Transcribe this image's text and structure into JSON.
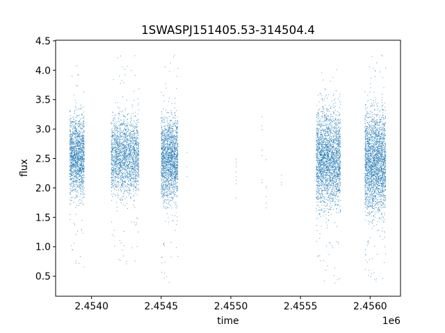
{
  "chart_data": {
    "type": "scatter",
    "title": "1SWASPJ151405.53-314504.4",
    "xlabel": "time",
    "ylabel": "flux",
    "x_offset_label": "1e6",
    "xlim": [
      2453742,
      2456218
    ],
    "ylim": [
      0.16,
      4.51
    ],
    "xticks": [
      2453999.9,
      2454500,
      2455000,
      2455500,
      2456000
    ],
    "xtick_labels": [
      "2.4540",
      "2.4545",
      "2.4550",
      "2.4555",
      "2.4560"
    ],
    "yticks": [
      0.5,
      1.0,
      1.5,
      2.0,
      2.5,
      3.0,
      3.5,
      4.0,
      4.5
    ],
    "ytick_labels": [
      "0.5",
      "1.0",
      "1.5",
      "2.0",
      "2.5",
      "3.0",
      "3.5",
      "4.0",
      "4.5"
    ],
    "grid": false,
    "legend": "none",
    "marker_color": "#1f77b4",
    "observing_seasons": [
      {
        "time_range": [
          2453843,
          2453948
        ],
        "flux_core": [
          1.9,
          3.2
        ],
        "flux_extent": [
          0.55,
          4.2
        ],
        "approx_points": 1500
      },
      {
        "time_range": [
          2454141,
          2454341
        ],
        "flux_core": [
          1.9,
          3.2
        ],
        "flux_extent": [
          0.7,
          4.3
        ],
        "approx_points": 2000
      },
      {
        "time_range": [
          2454500,
          2454620
        ],
        "flux_core": [
          1.8,
          3.2
        ],
        "flux_extent": [
          0.35,
          4.3
        ],
        "approx_points": 1800
      },
      {
        "time_range": [
          2455613,
          2455788
        ],
        "flux_core": [
          1.7,
          3.3
        ],
        "flux_extent": [
          0.35,
          4.05
        ],
        "approx_points": 2500
      },
      {
        "time_range": [
          2455962,
          2456112
        ],
        "flux_core": [
          1.6,
          3.3
        ],
        "flux_extent": [
          0.4,
          4.3
        ],
        "approx_points": 2500
      }
    ],
    "isolated_points": [
      [
        2454685,
        2.6
      ],
      [
        2454685,
        2.36
      ],
      [
        2454685,
        2.19
      ],
      [
        2455039,
        2.49
      ],
      [
        2455039,
        2.44
      ],
      [
        2455039,
        2.4
      ],
      [
        2455039,
        2.36
      ],
      [
        2455039,
        2.27
      ],
      [
        2455039,
        2.19
      ],
      [
        2455039,
        2.13
      ],
      [
        2455039,
        2.07
      ],
      [
        2455039,
        1.83
      ],
      [
        2455224,
        3.21
      ],
      [
        2455224,
        3.06
      ],
      [
        2455224,
        2.99
      ],
      [
        2455224,
        2.64
      ],
      [
        2455224,
        2.55
      ],
      [
        2455224,
        2.14
      ],
      [
        2455224,
        2.09
      ],
      [
        2455254,
        2.48
      ],
      [
        2455254,
        2.03
      ],
      [
        2455254,
        2.0
      ],
      [
        2455254,
        1.85
      ],
      [
        2455254,
        1.74
      ],
      [
        2455254,
        1.66
      ],
      [
        2455364,
        2.22
      ],
      [
        2455364,
        2.09
      ],
      [
        2455364,
        2.05
      ]
    ]
  }
}
